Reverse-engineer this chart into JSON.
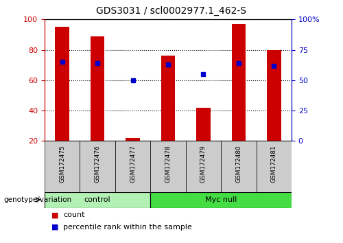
{
  "title": "GDS3031 / scl0002977.1_462-S",
  "samples": [
    "GSM172475",
    "GSM172476",
    "GSM172477",
    "GSM172478",
    "GSM172479",
    "GSM172480",
    "GSM172481"
  ],
  "counts": [
    95,
    89,
    22,
    76,
    42,
    97,
    80
  ],
  "percentile_ranks": [
    65,
    64,
    50,
    63,
    55,
    64,
    62
  ],
  "ylim_left": [
    20,
    100
  ],
  "ylim_right": [
    0,
    100
  ],
  "left_yticks": [
    20,
    40,
    60,
    80,
    100
  ],
  "right_yticks": [
    0,
    25,
    50,
    75,
    100
  ],
  "right_yticklabels": [
    "0",
    "25",
    "50",
    "75",
    "100%"
  ],
  "bar_color": "#cc0000",
  "dot_color": "#0000cc",
  "bar_width": 0.4,
  "groups": [
    {
      "label": "control",
      "start": 0,
      "end": 3,
      "color": "#b3f0b3"
    },
    {
      "label": "Myc null",
      "start": 3,
      "end": 7,
      "color": "#44dd44"
    }
  ],
  "genotype_label": "genotype/variation",
  "legend_count_label": "count",
  "legend_pct_label": "percentile rank within the sample",
  "axis_label_color_left": "#cc0000",
  "axis_label_color_right": "#0000cc",
  "sample_bg_color": "#cccccc",
  "fig_width": 5.0,
  "fig_height": 3.54
}
